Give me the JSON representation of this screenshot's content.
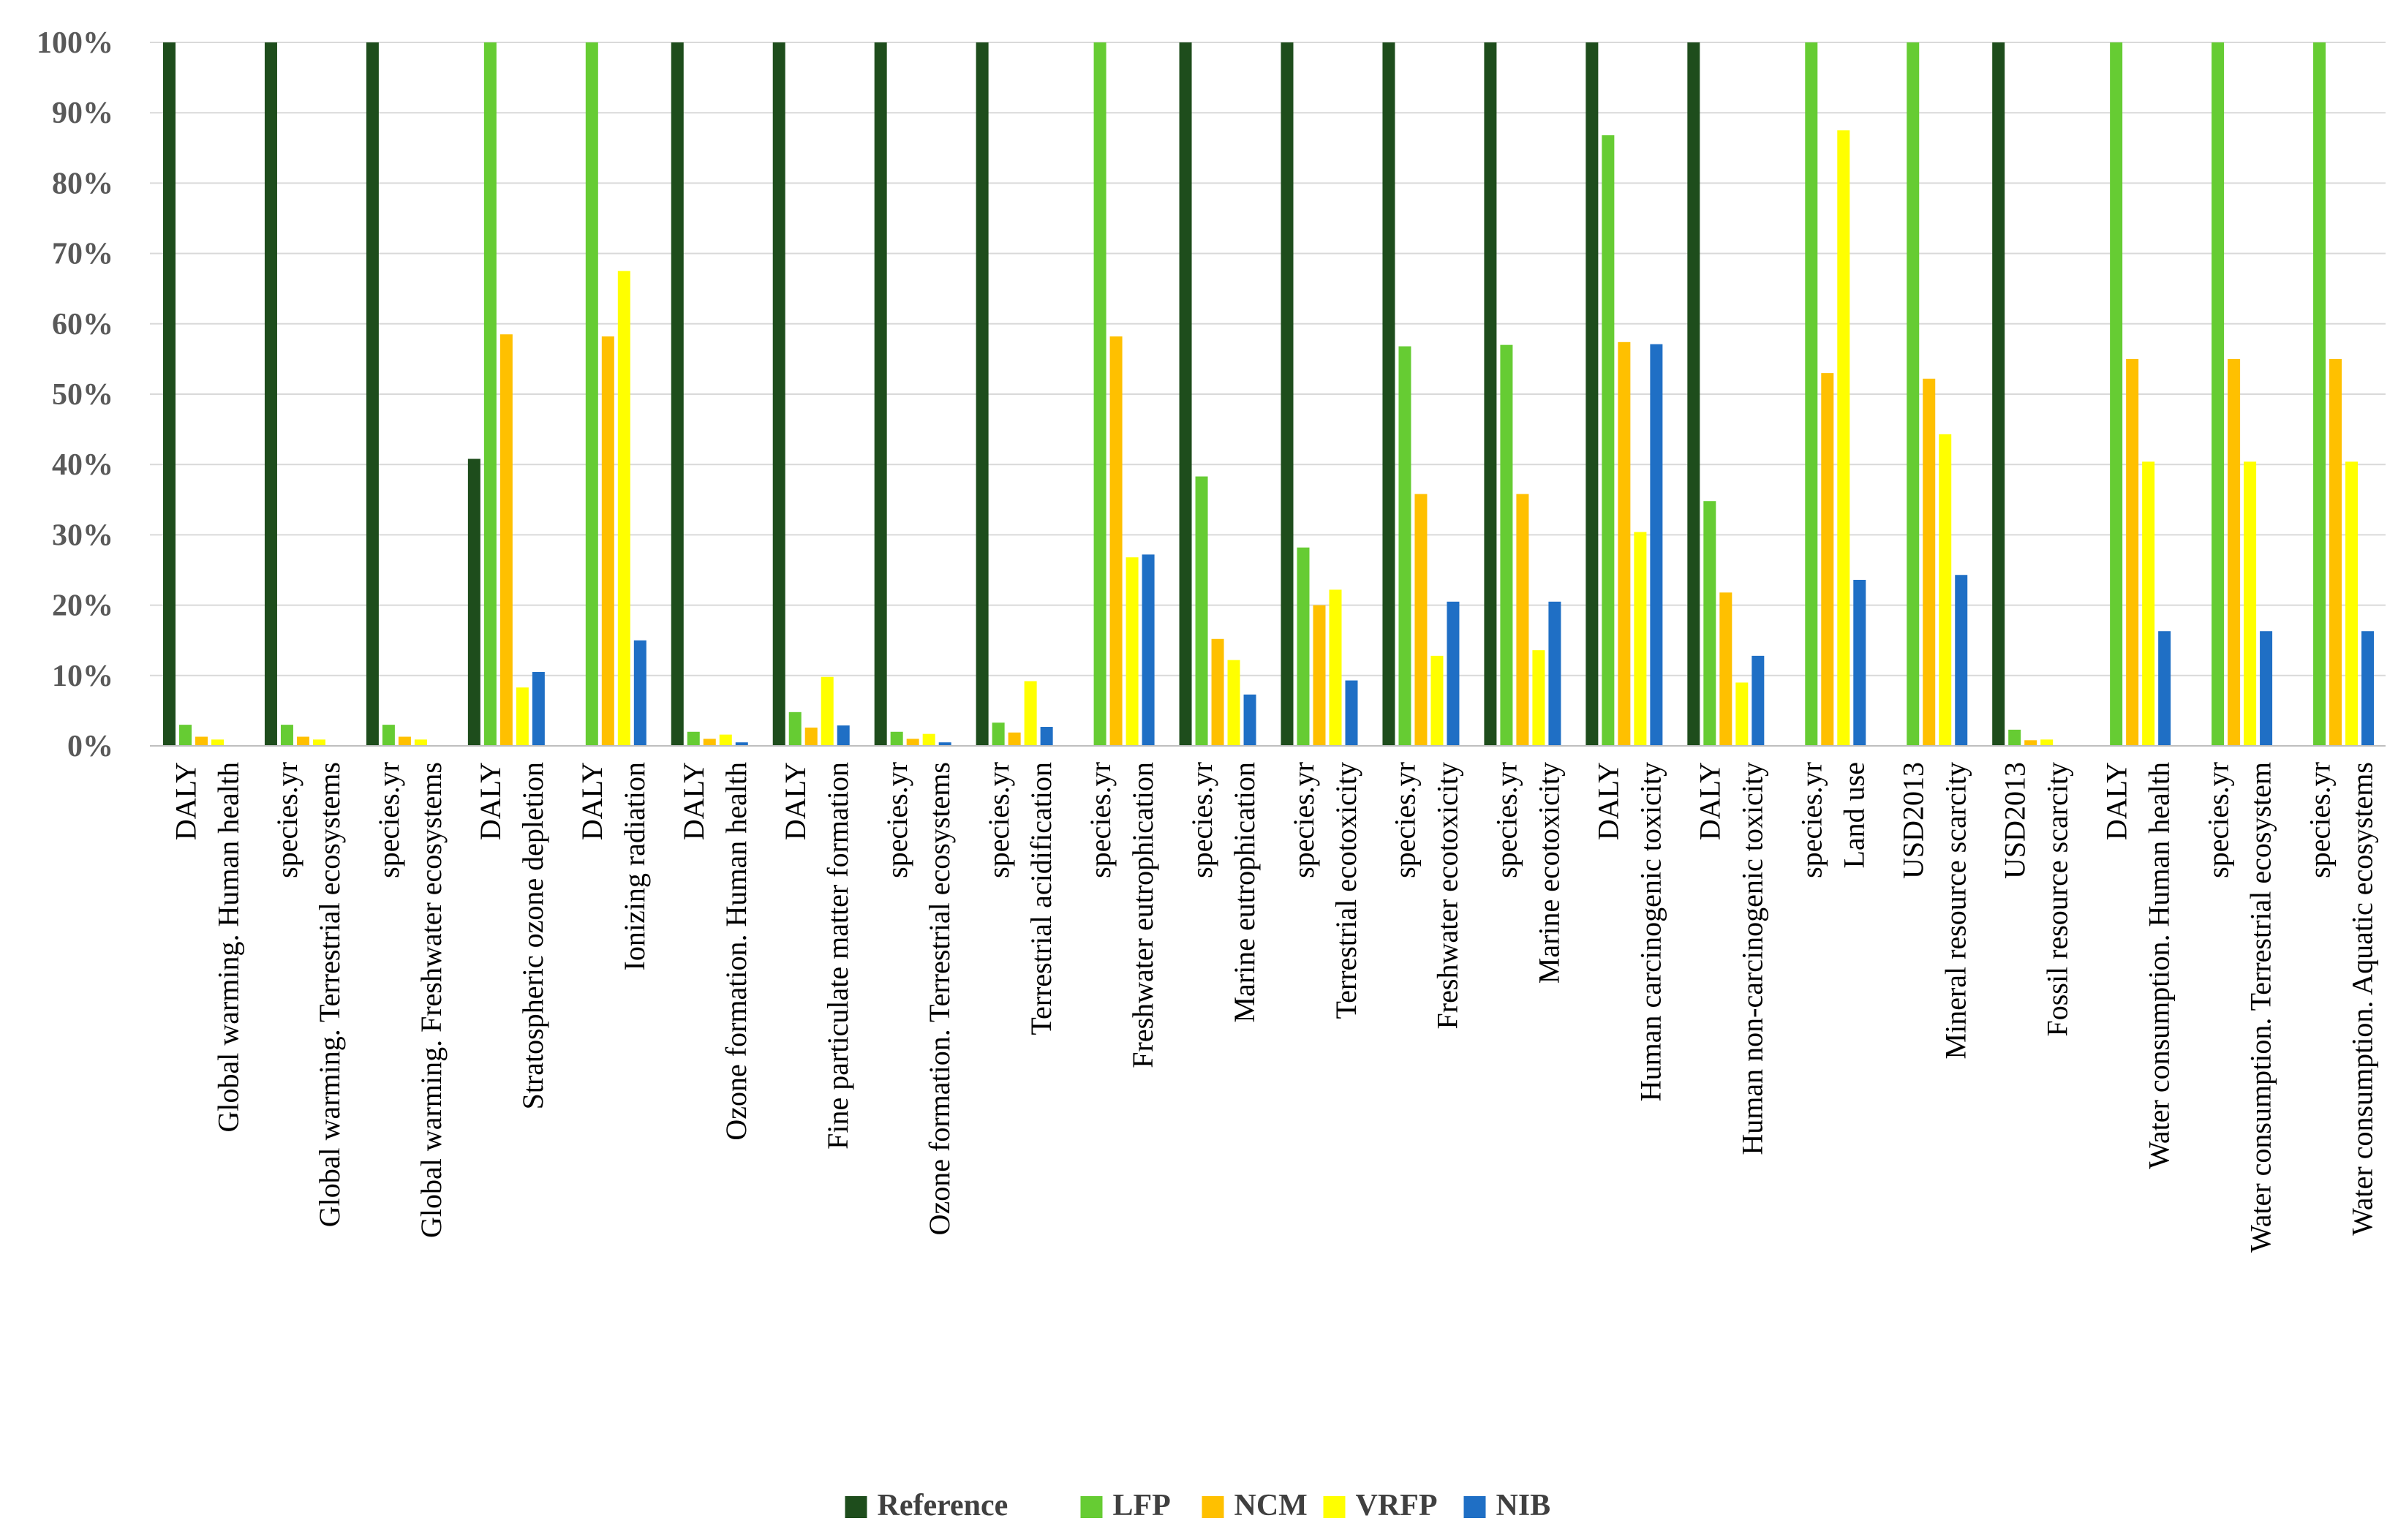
{
  "chart_data": {
    "type": "bar",
    "title": "",
    "xlabel": "",
    "ylabel": "",
    "ylim": [
      0,
      100
    ],
    "yticks": [
      "0%",
      "10%",
      "20%",
      "30%",
      "40%",
      "50%",
      "60%",
      "70%",
      "80%",
      "90%",
      "100%"
    ],
    "categories": [
      {
        "unit": "DALY",
        "name": "Global warming. Human health"
      },
      {
        "unit": "species.yr",
        "name": "Global warming. Terrestrial ecosystems"
      },
      {
        "unit": "species.yr",
        "name": "Global warming. Freshwater ecosystems"
      },
      {
        "unit": "DALY",
        "name": "Stratospheric ozone depletion"
      },
      {
        "unit": "DALY",
        "name": "Ionizing radiation"
      },
      {
        "unit": "DALY",
        "name": "Ozone formation. Human health"
      },
      {
        "unit": "DALY",
        "name": "Fine particulate matter formation"
      },
      {
        "unit": "species.yr",
        "name": "Ozone formation. Terrestrial ecosystems"
      },
      {
        "unit": "species.yr",
        "name": "Terrestrial acidification"
      },
      {
        "unit": "species.yr",
        "name": "Freshwater eutrophication"
      },
      {
        "unit": "species.yr",
        "name": "Marine eutrophication"
      },
      {
        "unit": "species.yr",
        "name": "Terrestrial ecotoxicity"
      },
      {
        "unit": "species.yr",
        "name": "Freshwater ecotoxicity"
      },
      {
        "unit": "species.yr",
        "name": "Marine ecotoxicity"
      },
      {
        "unit": "DALY",
        "name": "Human carcinogenic toxicity"
      },
      {
        "unit": "DALY",
        "name": "Human non-carcinogenic toxicity"
      },
      {
        "unit": "species.yr",
        "name": "Land use"
      },
      {
        "unit": "USD2013",
        "name": "Mineral resource scarcity"
      },
      {
        "unit": "USD2013",
        "name": "Fossil resource scarcity"
      },
      {
        "unit": "DALY",
        "name": "Water consumption. Human health"
      },
      {
        "unit": "species.yr",
        "name": "Water consumption. Terrestrial ecosystem"
      },
      {
        "unit": "species.yr",
        "name": "Water consumption. Aquatic ecosystems"
      }
    ],
    "series": [
      {
        "name": "Reference",
        "color": "#1e4d1c",
        "values": [
          100,
          100,
          100,
          40.8,
          0,
          100,
          100,
          100,
          100,
          0,
          100,
          100,
          100,
          100,
          100,
          100,
          0,
          0,
          100,
          0,
          0,
          0
        ]
      },
      {
        "name": "LFP",
        "color": "#66cc33",
        "values": [
          3.0,
          3.0,
          3.0,
          100,
          100,
          2.0,
          4.8,
          2.0,
          3.3,
          100,
          38.3,
          28.2,
          56.8,
          57.0,
          86.8,
          34.8,
          100,
          100,
          2.3,
          100,
          100,
          100
        ]
      },
      {
        "name": "NCM",
        "color": "#ffc000",
        "values": [
          1.3,
          1.3,
          1.3,
          58.5,
          58.2,
          1.0,
          2.6,
          1.0,
          1.9,
          58.2,
          15.2,
          20.0,
          35.8,
          35.8,
          57.4,
          21.8,
          53.0,
          52.2,
          0.8,
          55.0,
          55.0,
          55.0
        ]
      },
      {
        "name": "VRFP",
        "color": "#ffff00",
        "values": [
          0.9,
          0.9,
          0.9,
          8.3,
          67.5,
          1.6,
          9.8,
          1.7,
          9.2,
          26.8,
          12.2,
          22.2,
          12.8,
          13.6,
          30.4,
          9.0,
          87.5,
          44.3,
          0.9,
          40.4,
          40.4,
          40.4
        ]
      },
      {
        "name": "NIB",
        "color": "#1f6fc5",
        "values": [
          0,
          0,
          0,
          10.5,
          15.0,
          0.5,
          2.9,
          0.5,
          2.7,
          27.2,
          7.3,
          9.3,
          20.5,
          20.5,
          57.1,
          12.8,
          23.6,
          24.3,
          0,
          16.3,
          16.3,
          16.3
        ]
      }
    ],
    "legend": "bottom"
  }
}
